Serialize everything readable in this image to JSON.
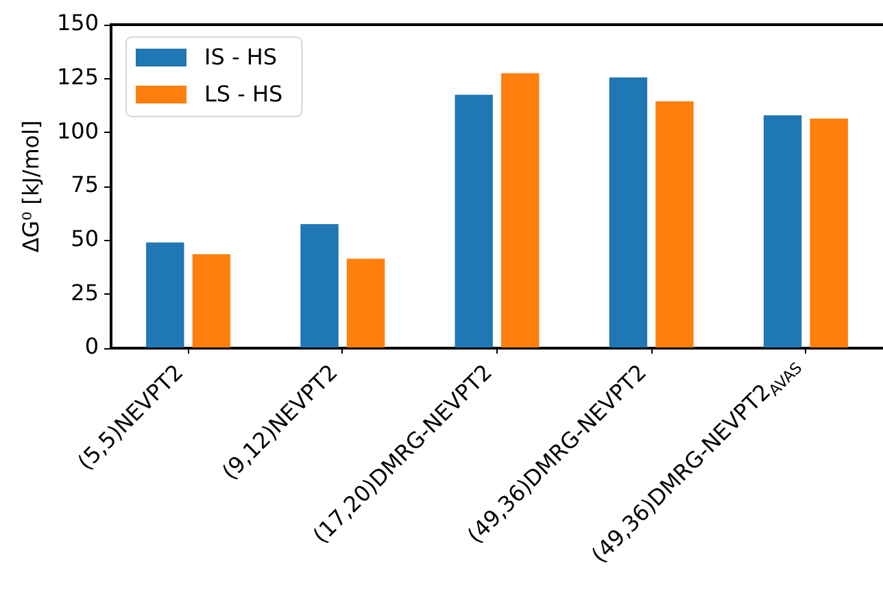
{
  "chart_data": {
    "type": "bar",
    "categories": [
      "(5,5)NEVPT2",
      "(9,12)NEVPT2",
      "(17,20)DMRG-NEVPT2",
      "(49,36)DMRG-NEVPT2",
      "(49,36)DMRG-NEVPT2$_{AVAS}$"
    ],
    "series": [
      {
        "name": "IS - HS",
        "color": "#1f77b4",
        "values": [
          49,
          57.5,
          117.5,
          125.5,
          108
        ]
      },
      {
        "name": "LS - HS",
        "color": "#ff7f0e",
        "values": [
          43.5,
          41.5,
          127.5,
          114.5,
          106.5
        ]
      }
    ],
    "ylabel": "ΔG⁰ [kJ/mol]",
    "ylim": [
      0,
      150
    ],
    "yticks": [
      0,
      25,
      50,
      75,
      100,
      125,
      150
    ],
    "legend": "top left"
  }
}
